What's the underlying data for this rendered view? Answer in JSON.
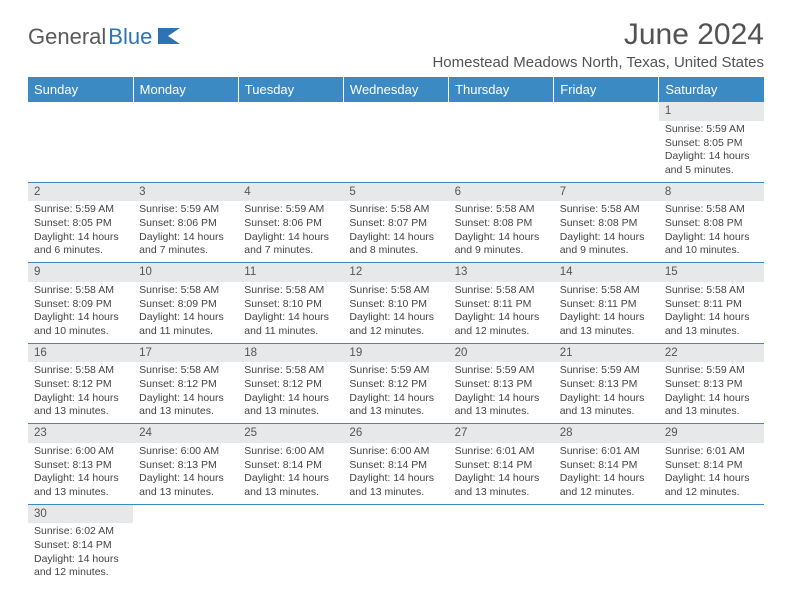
{
  "logo": {
    "text1": "General",
    "text2": "Blue",
    "color_general": "#5a5a5a",
    "color_blue": "#2e74b5"
  },
  "title": "June 2024",
  "location": "Homestead Meadows North, Texas, United States",
  "colors": {
    "header_bg": "#3b8ac4",
    "header_fg": "#ffffff",
    "daynum_bg": "#e7e8e9",
    "border": "#3b8ac4",
    "text": "#444444"
  },
  "weekdays": [
    "Sunday",
    "Monday",
    "Tuesday",
    "Wednesday",
    "Thursday",
    "Friday",
    "Saturday"
  ],
  "sunrise_prefix": "Sunrise: ",
  "sunset_prefix": "Sunset: ",
  "daylight_prefix": "Daylight: ",
  "weeks": [
    [
      null,
      null,
      null,
      null,
      null,
      null,
      {
        "n": "1",
        "sr": "5:59 AM",
        "ss": "8:05 PM",
        "dl1": "14 hours",
        "dl2": "and 5 minutes."
      }
    ],
    [
      {
        "n": "2",
        "sr": "5:59 AM",
        "ss": "8:05 PM",
        "dl1": "14 hours",
        "dl2": "and 6 minutes."
      },
      {
        "n": "3",
        "sr": "5:59 AM",
        "ss": "8:06 PM",
        "dl1": "14 hours",
        "dl2": "and 7 minutes."
      },
      {
        "n": "4",
        "sr": "5:59 AM",
        "ss": "8:06 PM",
        "dl1": "14 hours",
        "dl2": "and 7 minutes."
      },
      {
        "n": "5",
        "sr": "5:58 AM",
        "ss": "8:07 PM",
        "dl1": "14 hours",
        "dl2": "and 8 minutes."
      },
      {
        "n": "6",
        "sr": "5:58 AM",
        "ss": "8:08 PM",
        "dl1": "14 hours",
        "dl2": "and 9 minutes."
      },
      {
        "n": "7",
        "sr": "5:58 AM",
        "ss": "8:08 PM",
        "dl1": "14 hours",
        "dl2": "and 9 minutes."
      },
      {
        "n": "8",
        "sr": "5:58 AM",
        "ss": "8:08 PM",
        "dl1": "14 hours",
        "dl2": "and 10 minutes."
      }
    ],
    [
      {
        "n": "9",
        "sr": "5:58 AM",
        "ss": "8:09 PM",
        "dl1": "14 hours",
        "dl2": "and 10 minutes."
      },
      {
        "n": "10",
        "sr": "5:58 AM",
        "ss": "8:09 PM",
        "dl1": "14 hours",
        "dl2": "and 11 minutes."
      },
      {
        "n": "11",
        "sr": "5:58 AM",
        "ss": "8:10 PM",
        "dl1": "14 hours",
        "dl2": "and 11 minutes."
      },
      {
        "n": "12",
        "sr": "5:58 AM",
        "ss": "8:10 PM",
        "dl1": "14 hours",
        "dl2": "and 12 minutes."
      },
      {
        "n": "13",
        "sr": "5:58 AM",
        "ss": "8:11 PM",
        "dl1": "14 hours",
        "dl2": "and 12 minutes."
      },
      {
        "n": "14",
        "sr": "5:58 AM",
        "ss": "8:11 PM",
        "dl1": "14 hours",
        "dl2": "and 13 minutes."
      },
      {
        "n": "15",
        "sr": "5:58 AM",
        "ss": "8:11 PM",
        "dl1": "14 hours",
        "dl2": "and 13 minutes."
      }
    ],
    [
      {
        "n": "16",
        "sr": "5:58 AM",
        "ss": "8:12 PM",
        "dl1": "14 hours",
        "dl2": "and 13 minutes."
      },
      {
        "n": "17",
        "sr": "5:58 AM",
        "ss": "8:12 PM",
        "dl1": "14 hours",
        "dl2": "and 13 minutes."
      },
      {
        "n": "18",
        "sr": "5:58 AM",
        "ss": "8:12 PM",
        "dl1": "14 hours",
        "dl2": "and 13 minutes."
      },
      {
        "n": "19",
        "sr": "5:59 AM",
        "ss": "8:12 PM",
        "dl1": "14 hours",
        "dl2": "and 13 minutes."
      },
      {
        "n": "20",
        "sr": "5:59 AM",
        "ss": "8:13 PM",
        "dl1": "14 hours",
        "dl2": "and 13 minutes."
      },
      {
        "n": "21",
        "sr": "5:59 AM",
        "ss": "8:13 PM",
        "dl1": "14 hours",
        "dl2": "and 13 minutes."
      },
      {
        "n": "22",
        "sr": "5:59 AM",
        "ss": "8:13 PM",
        "dl1": "14 hours",
        "dl2": "and 13 minutes."
      }
    ],
    [
      {
        "n": "23",
        "sr": "6:00 AM",
        "ss": "8:13 PM",
        "dl1": "14 hours",
        "dl2": "and 13 minutes."
      },
      {
        "n": "24",
        "sr": "6:00 AM",
        "ss": "8:13 PM",
        "dl1": "14 hours",
        "dl2": "and 13 minutes."
      },
      {
        "n": "25",
        "sr": "6:00 AM",
        "ss": "8:14 PM",
        "dl1": "14 hours",
        "dl2": "and 13 minutes."
      },
      {
        "n": "26",
        "sr": "6:00 AM",
        "ss": "8:14 PM",
        "dl1": "14 hours",
        "dl2": "and 13 minutes."
      },
      {
        "n": "27",
        "sr": "6:01 AM",
        "ss": "8:14 PM",
        "dl1": "14 hours",
        "dl2": "and 13 minutes."
      },
      {
        "n": "28",
        "sr": "6:01 AM",
        "ss": "8:14 PM",
        "dl1": "14 hours",
        "dl2": "and 12 minutes."
      },
      {
        "n": "29",
        "sr": "6:01 AM",
        "ss": "8:14 PM",
        "dl1": "14 hours",
        "dl2": "and 12 minutes."
      }
    ],
    [
      {
        "n": "30",
        "sr": "6:02 AM",
        "ss": "8:14 PM",
        "dl1": "14 hours",
        "dl2": "and 12 minutes."
      },
      null,
      null,
      null,
      null,
      null,
      null
    ]
  ]
}
